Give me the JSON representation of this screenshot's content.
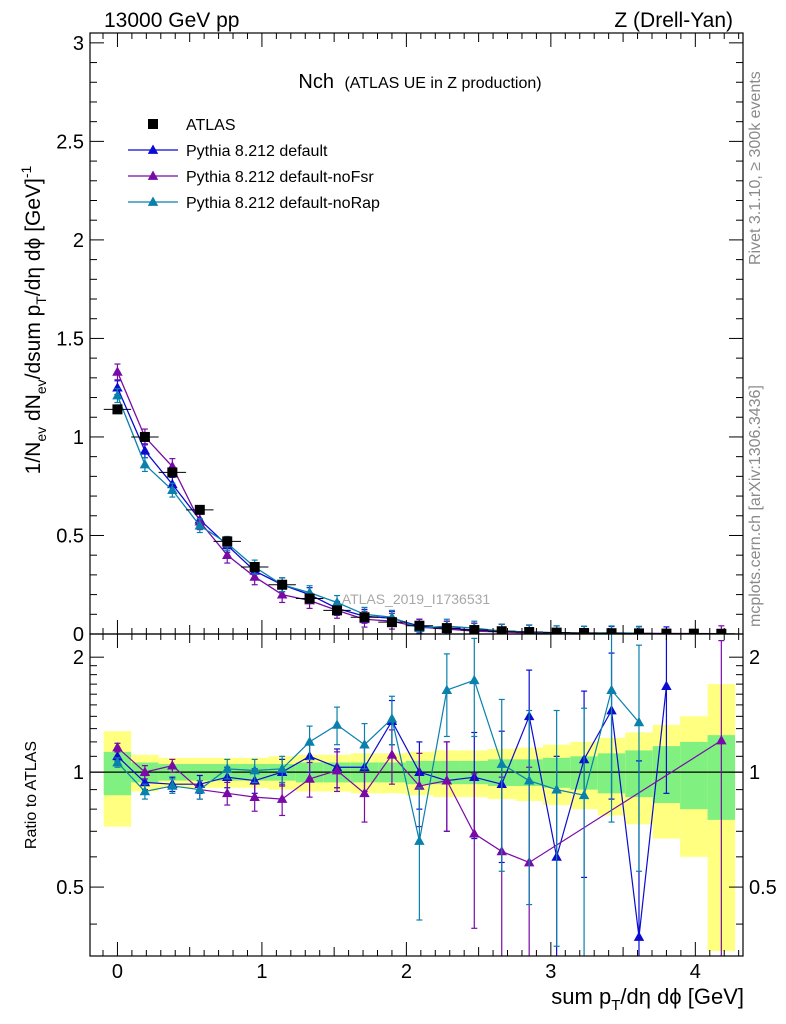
{
  "header": {
    "left": "13000 GeV pp",
    "right": "Z (Drell-Yan)"
  },
  "plot_title": {
    "main": "Nch",
    "sub": "(ATLAS UE in Z production)"
  },
  "side_text": {
    "top": "Rivet 3.1.10, ≥ 300k events",
    "bottom": "mcplots.cern.ch [arXiv:1306.3436]"
  },
  "watermark": "ATLAS_2019_I1736531",
  "axes": {
    "y_label": "1/N_ev dN_ev/dsum p_T/dη dϕ [GeV]^-1",
    "x_label": "sum p_T/dη dϕ [GeV]",
    "ratio_label": "Ratio to ATLAS"
  },
  "colors": {
    "data": "#000000",
    "default": "#0b0bd2",
    "noFsr": "#7a0aa8",
    "noRap": "#0a80ad",
    "band_inner": "#80f080",
    "band_outer": "#ffff80"
  },
  "chart_data": [
    {
      "type": "line",
      "title": "Nch (ATLAS UE in Z production)",
      "xlabel": "sum pT/dη dϕ [GeV]",
      "ylabel": "1/Nev dNev/dsum pT/dη dϕ [GeV]^-1",
      "xlim": [
        -0.19,
        4.33
      ],
      "ylim": [
        0,
        3.05
      ],
      "x_ticks": [
        0,
        1,
        2,
        3,
        4
      ],
      "y_ticks": [
        0,
        0.5,
        1,
        1.5,
        2,
        2.5,
        3
      ],
      "y_tick_labels": [
        "0",
        "0.5",
        "1",
        "1.5",
        "2",
        "2.5",
        "3"
      ],
      "legend": [
        "ATLAS",
        "Pythia 8.212 default",
        "Pythia 8.212 default-noFsr",
        "Pythia 8.212 default-noRap"
      ],
      "legend_position": "top-left",
      "x": [
        0.0,
        0.19,
        0.38,
        0.57,
        0.76,
        0.95,
        1.14,
        1.33,
        1.52,
        1.71,
        1.9,
        2.09,
        2.28,
        2.47,
        2.66,
        2.85,
        3.04,
        3.23,
        3.42,
        3.61,
        3.8,
        3.99,
        4.18
      ],
      "series": [
        {
          "name": "ATLAS",
          "values": [
            1.14,
            1.0,
            0.82,
            0.63,
            0.47,
            0.34,
            0.25,
            0.18,
            0.12,
            0.085,
            0.06,
            0.042,
            0.03,
            0.02,
            0.014,
            0.01,
            0.007,
            0.005,
            0.004,
            0.003,
            0.002,
            0.0018,
            0.0012
          ]
        },
        {
          "name": "Pythia 8.212 default",
          "values": [
            1.25,
            0.93,
            0.76,
            0.58,
            0.45,
            0.32,
            0.25,
            0.2,
            0.13,
            0.09,
            0.08,
            0.04,
            0.03,
            0.02,
            0.015,
            0.01,
            0.006,
            0.004,
            0.003,
            0.002,
            0.001,
            null,
            null
          ],
          "err": 0.035
        },
        {
          "name": "Pythia 8.212 default-noFsr",
          "values": [
            1.33,
            1.0,
            0.85,
            0.57,
            0.4,
            0.29,
            0.2,
            0.17,
            0.12,
            0.075,
            0.065,
            0.035,
            0.025,
            0.015,
            0.01,
            0.006,
            null,
            null,
            null,
            null,
            null,
            null,
            0.0015
          ],
          "err": 0.04
        },
        {
          "name": "Pythia 8.212 default-noRap",
          "values": [
            1.21,
            0.86,
            0.73,
            0.55,
            0.46,
            0.34,
            0.25,
            0.21,
            0.16,
            0.1,
            0.085,
            0.03,
            0.04,
            0.03,
            0.015,
            0.01,
            0.006,
            0.004,
            0.006,
            0.004,
            null,
            null,
            null
          ],
          "err": 0.035
        }
      ]
    },
    {
      "type": "line",
      "title": "Ratio to ATLAS",
      "xlabel": "sum pT/dη dϕ [GeV]",
      "ylabel": "Ratio to ATLAS",
      "xlim": [
        -0.19,
        4.33
      ],
      "ylim": [
        0.33,
        2.3
      ],
      "x_ticks": [
        0,
        1,
        2,
        3,
        4
      ],
      "y_ticks": [
        0.5,
        1,
        2
      ],
      "y_tick_labels": [
        "0.5",
        "1",
        "2"
      ],
      "x_tick_labels": [
        "0",
        "1",
        "2",
        "3",
        "4"
      ],
      "x": [
        0.0,
        0.19,
        0.38,
        0.57,
        0.76,
        0.95,
        1.14,
        1.33,
        1.52,
        1.71,
        1.9,
        2.09,
        2.28,
        2.47,
        2.66,
        2.85,
        3.04,
        3.23,
        3.42,
        3.61,
        3.8,
        3.99,
        4.18
      ],
      "bands": {
        "inner": [
          0.13,
          0.06,
          0.05,
          0.05,
          0.05,
          0.05,
          0.05,
          0.06,
          0.06,
          0.06,
          0.06,
          0.07,
          0.07,
          0.07,
          0.08,
          0.08,
          0.09,
          0.1,
          0.12,
          0.14,
          0.17,
          0.2,
          0.25
        ],
        "outer": [
          0.28,
          0.11,
          0.09,
          0.09,
          0.09,
          0.09,
          0.1,
          0.11,
          0.11,
          0.12,
          0.12,
          0.13,
          0.14,
          0.14,
          0.15,
          0.16,
          0.18,
          0.2,
          0.23,
          0.27,
          0.33,
          0.4,
          0.7
        ]
      },
      "series": [
        {
          "name": "Pythia 8.212 default",
          "values": [
            1.1,
            0.94,
            0.93,
            0.93,
            0.97,
            0.95,
            1.0,
            1.1,
            1.03,
            1.03,
            1.36,
            1.0,
            0.95,
            0.97,
            0.93,
            1.4,
            0.6,
            1.08,
            1.45,
            0.37,
            1.68,
            null,
            null
          ],
          "err": [
            0.03,
            0.04,
            0.04,
            0.05,
            0.06,
            0.07,
            0.08,
            0.1,
            0.12,
            0.14,
            0.18,
            0.2,
            0.25,
            0.3,
            0.35,
            0.45,
            0.5,
            0.55,
            0.6,
            0.7,
            0.8,
            null,
            null
          ]
        },
        {
          "name": "Pythia 8.212 default-noFsr",
          "values": [
            1.16,
            1.0,
            1.04,
            0.9,
            0.88,
            0.86,
            0.85,
            0.96,
            1.01,
            0.88,
            1.11,
            0.92,
            0.95,
            0.69,
            0.62,
            0.58,
            null,
            null,
            null,
            null,
            null,
            null,
            1.21
          ],
          "err": [
            0.03,
            0.04,
            0.04,
            0.05,
            0.06,
            0.07,
            0.08,
            0.1,
            0.12,
            0.14,
            0.18,
            0.2,
            0.25,
            0.3,
            0.35,
            0.45,
            null,
            null,
            null,
            null,
            null,
            null,
            1.0
          ]
        },
        {
          "name": "Pythia 8.212 default-noRap",
          "values": [
            1.06,
            0.89,
            0.92,
            0.9,
            1.02,
            1.01,
            1.02,
            1.2,
            1.33,
            1.18,
            1.38,
            0.66,
            1.64,
            1.74,
            1.05,
            0.95,
            0.9,
            0.87,
            1.64,
            1.35,
            null,
            null,
            null
          ],
          "err": [
            0.03,
            0.04,
            0.04,
            0.05,
            0.06,
            0.07,
            0.08,
            0.12,
            0.15,
            0.16,
            0.2,
            0.25,
            0.4,
            0.5,
            0.5,
            0.5,
            0.55,
            0.6,
            0.9,
            0.8,
            null,
            null,
            null
          ]
        }
      ]
    }
  ]
}
